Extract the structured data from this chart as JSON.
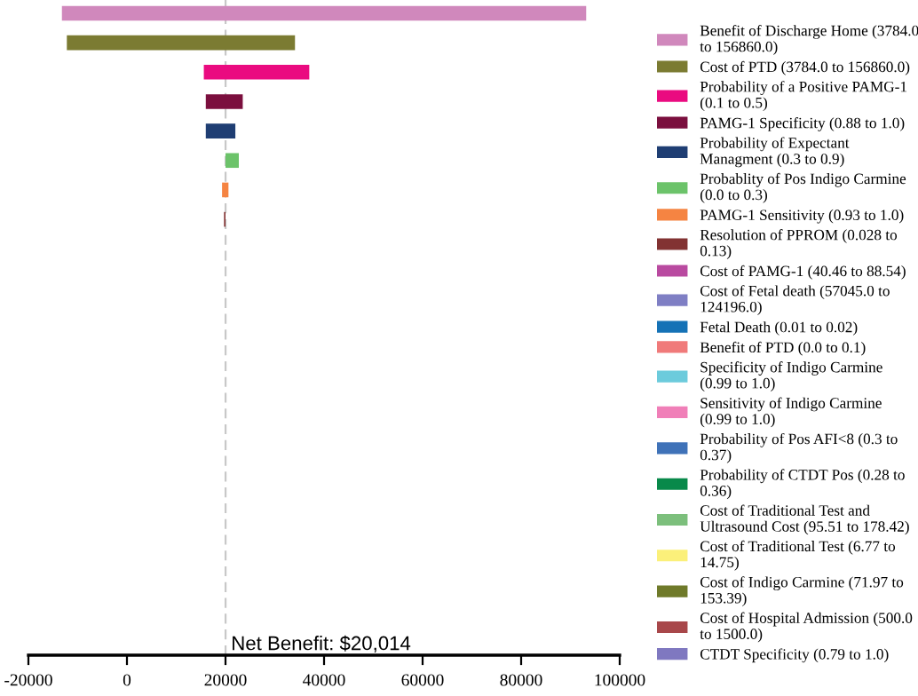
{
  "chart_data": {
    "type": "bar",
    "orientation": "horizontal",
    "tick_labels": "x",
    "grid": false,
    "legend": "right",
    "categories": [
      null,
      null,
      null,
      null,
      null,
      null,
      null,
      null,
      null,
      null,
      null,
      null,
      null,
      null,
      null,
      null,
      null,
      null,
      null,
      null,
      null
    ],
    "series": [
      {
        "name": "Benefit of Discharge Home (3784.0 to 156860.0)",
        "color": "#d088bc",
        "base": [
          -13200,
          null,
          null,
          null,
          null,
          null,
          null,
          null,
          null,
          null,
          null,
          null,
          null,
          null,
          null,
          null,
          null,
          null,
          null,
          null,
          null
        ],
        "values": [
          106400,
          null,
          null,
          null,
          null,
          null,
          null,
          null,
          null,
          null,
          null,
          null,
          null,
          null,
          null,
          null,
          null,
          null,
          null,
          null,
          null
        ]
      },
      {
        "name": "Cost of PTD (3784.0 to 156860.0)",
        "color": "#7b7b32",
        "base": [
          null,
          -12200,
          null,
          null,
          null,
          null,
          null,
          null,
          null,
          null,
          null,
          null,
          null,
          null,
          null,
          null,
          null,
          null,
          null,
          null,
          null
        ],
        "values": [
          null,
          46300,
          null,
          null,
          null,
          null,
          null,
          null,
          null,
          null,
          null,
          null,
          null,
          null,
          null,
          null,
          null,
          null,
          null,
          null,
          null
        ]
      },
      {
        "name": "Probability of a Positive PAMG-1 (0.1 to 0.5)",
        "color": "#ea0b80",
        "base": [
          null,
          null,
          15600,
          null,
          null,
          null,
          null,
          null,
          null,
          null,
          null,
          null,
          null,
          null,
          null,
          null,
          null,
          null,
          null,
          null,
          null
        ],
        "values": [
          null,
          null,
          21400,
          null,
          null,
          null,
          null,
          null,
          null,
          null,
          null,
          null,
          null,
          null,
          null,
          null,
          null,
          null,
          null,
          null,
          null
        ]
      },
      {
        "name": "PAMG-1 Specificity (0.88 to 1.0)",
        "color": "#7b0f3e",
        "base": [
          null,
          null,
          null,
          16000,
          null,
          null,
          null,
          null,
          null,
          null,
          null,
          null,
          null,
          null,
          null,
          null,
          null,
          null,
          null,
          null,
          null
        ],
        "values": [
          null,
          null,
          null,
          7500,
          null,
          null,
          null,
          null,
          null,
          null,
          null,
          null,
          null,
          null,
          null,
          null,
          null,
          null,
          null,
          null,
          null
        ]
      },
      {
        "name": "Probability of Expectant Managment (0.3 to 0.9)",
        "color": "#1f3e73",
        "base": [
          null,
          null,
          null,
          null,
          16000,
          null,
          null,
          null,
          null,
          null,
          null,
          null,
          null,
          null,
          null,
          null,
          null,
          null,
          null,
          null,
          null
        ],
        "values": [
          null,
          null,
          null,
          null,
          6000,
          null,
          null,
          null,
          null,
          null,
          null,
          null,
          null,
          null,
          null,
          null,
          null,
          null,
          null,
          null,
          null
        ]
      },
      {
        "name": "Probablity of Pos Indigo Carmine (0.0 to 0.3)",
        "color": "#6cc36a",
        "base": [
          null,
          null,
          null,
          null,
          null,
          20000,
          null,
          null,
          null,
          null,
          null,
          null,
          null,
          null,
          null,
          null,
          null,
          null,
          null,
          null,
          null
        ],
        "values": [
          null,
          null,
          null,
          null,
          null,
          2700,
          null,
          null,
          null,
          null,
          null,
          null,
          null,
          null,
          null,
          null,
          null,
          null,
          null,
          null,
          null
        ]
      },
      {
        "name": "PAMG-1 Sensitivity (0.93 to 1.0)",
        "color": "#f58442",
        "base": [
          null,
          null,
          null,
          null,
          null,
          null,
          19300,
          null,
          null,
          null,
          null,
          null,
          null,
          null,
          null,
          null,
          null,
          null,
          null,
          null,
          null
        ],
        "values": [
          null,
          null,
          null,
          null,
          null,
          null,
          1300,
          null,
          null,
          null,
          null,
          null,
          null,
          null,
          null,
          null,
          null,
          null,
          null,
          null,
          null
        ]
      },
      {
        "name": "Resolution of PPROM (0.028 to 0.13)",
        "color": "#823232",
        "base": [
          null,
          null,
          null,
          null,
          null,
          null,
          null,
          19700,
          null,
          null,
          null,
          null,
          null,
          null,
          null,
          null,
          null,
          null,
          null,
          null,
          null
        ],
        "values": [
          null,
          null,
          null,
          null,
          null,
          null,
          null,
          300,
          null,
          null,
          null,
          null,
          null,
          null,
          null,
          null,
          null,
          null,
          null,
          null,
          null
        ]
      },
      {
        "name": "Cost of PAMG-1 (40.46 to 88.54)",
        "color": "#b94aa0",
        "values": [
          null,
          null,
          null,
          null,
          null,
          null,
          null,
          null,
          null,
          null,
          null,
          null,
          null,
          null,
          null,
          null,
          null,
          null,
          null,
          null,
          null
        ]
      },
      {
        "name": "Cost of Fetal death (57045.0 to 124196.0)",
        "color": "#7f7fc4",
        "values": [
          null,
          null,
          null,
          null,
          null,
          null,
          null,
          null,
          null,
          null,
          null,
          null,
          null,
          null,
          null,
          null,
          null,
          null,
          null,
          null,
          null
        ]
      },
      {
        "name": "Fetal Death (0.01 to 0.02)",
        "color": "#1572b6",
        "values": [
          null,
          null,
          null,
          null,
          null,
          null,
          null,
          null,
          null,
          null,
          null,
          null,
          null,
          null,
          null,
          null,
          null,
          null,
          null,
          null,
          null
        ]
      },
      {
        "name": "Benefit of PTD (0.0 to 0.1)",
        "color": "#f07a7a",
        "values": [
          null,
          null,
          null,
          null,
          null,
          null,
          null,
          null,
          null,
          null,
          null,
          null,
          null,
          null,
          null,
          null,
          null,
          null,
          null,
          null,
          null
        ]
      },
      {
        "name": "Specificity of Indigo Carmine (0.99 to 1.0)",
        "color": "#6ccbdc",
        "values": [
          null,
          null,
          null,
          null,
          null,
          null,
          null,
          null,
          null,
          null,
          null,
          null,
          null,
          null,
          null,
          null,
          null,
          null,
          null,
          null,
          null
        ]
      },
      {
        "name": "Sensitivity of Indigo Carmine (0.99 to 1.0)",
        "color": "#f07fb8",
        "values": [
          null,
          null,
          null,
          null,
          null,
          null,
          null,
          null,
          null,
          null,
          null,
          null,
          null,
          null,
          null,
          null,
          null,
          null,
          null,
          null,
          null
        ]
      },
      {
        "name": "Probability of Pos AFI<8 (0.3 to 0.37)",
        "color": "#3f72b8",
        "values": [
          null,
          null,
          null,
          null,
          null,
          null,
          null,
          null,
          null,
          null,
          null,
          null,
          null,
          null,
          null,
          null,
          null,
          null,
          null,
          null,
          null
        ]
      },
      {
        "name": "Probability of CTDT Pos (0.28 to 0.36)",
        "color": "#08894a",
        "values": [
          null,
          null,
          null,
          null,
          null,
          null,
          null,
          null,
          null,
          null,
          null,
          null,
          null,
          null,
          null,
          null,
          null,
          null,
          null,
          null,
          null
        ]
      },
      {
        "name": "Cost of Traditional Test and Ultrasound Cost (95.51 to 178.42)",
        "color": "#7cbf7c",
        "values": [
          null,
          null,
          null,
          null,
          null,
          null,
          null,
          null,
          null,
          null,
          null,
          null,
          null,
          null,
          null,
          null,
          null,
          null,
          null,
          null,
          null
        ]
      },
      {
        "name": "Cost of Traditional Test (6.77 to 14.75)",
        "color": "#fbf07a",
        "values": [
          null,
          null,
          null,
          null,
          null,
          null,
          null,
          null,
          null,
          null,
          null,
          null,
          null,
          null,
          null,
          null,
          null,
          null,
          null,
          null,
          null
        ]
      },
      {
        "name": "Cost of Indigo Carmine (71.97 to 153.39)",
        "color": "#6f7a2a",
        "values": [
          null,
          null,
          null,
          null,
          null,
          null,
          null,
          null,
          null,
          null,
          null,
          null,
          null,
          null,
          null,
          null,
          null,
          null,
          null,
          null,
          null
        ]
      },
      {
        "name": "Cost of Hospital Admission (500.0 to 1500.0)",
        "color": "#a8474a",
        "values": [
          null,
          null,
          null,
          null,
          null,
          null,
          null,
          null,
          null,
          null,
          null,
          null,
          null,
          null,
          null,
          null,
          null,
          null,
          null,
          null,
          null
        ]
      },
      {
        "name": "CTDT Specificity (0.79 to 1.0)",
        "color": "#7f78c0",
        "values": [
          null,
          null,
          null,
          null,
          null,
          null,
          null,
          null,
          null,
          null,
          null,
          null,
          null,
          null,
          null,
          null,
          null,
          null,
          null,
          null,
          null
        ]
      }
    ],
    "xlim": [
      -20000,
      100000
    ],
    "xticks": [
      -20000,
      0,
      20000,
      40000,
      60000,
      80000,
      100000
    ],
    "ref_lines": [
      {
        "axis": "x",
        "value": 20014,
        "label": "Net Benefit: $20,014",
        "color": "#c8c8c8",
        "line_style": "dashed"
      }
    ]
  }
}
